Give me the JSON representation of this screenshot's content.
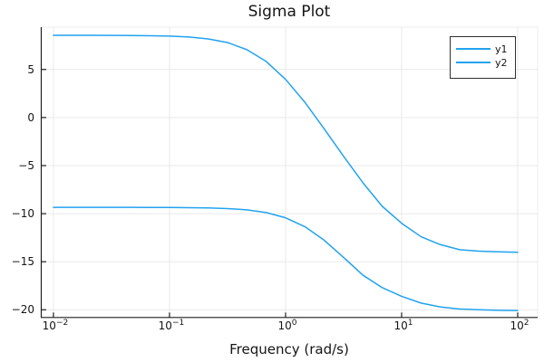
{
  "title": "Sigma Plot",
  "xlabel": "Frequency (rad/s)",
  "style": {
    "series_color": "#22a2ef",
    "grid_color": "#e9e9e9",
    "frame_color": "#ededed",
    "spine_color": "#1f1f1f",
    "text_color": "#151515",
    "legend_border_color": "#2f2f2f",
    "background": "#ffffff"
  },
  "chart_data": {
    "type": "line",
    "title": "Sigma Plot",
    "xlabel": "Frequency (rad/s)",
    "ylabel": "",
    "xscale": "log10",
    "xlim_log10": [
      -2.109,
      2.172
    ],
    "ylim": [
      -20.8,
      9.4
    ],
    "x_tick_exponents": [
      -2,
      -1,
      0,
      1,
      2
    ],
    "y_ticks": [
      5,
      0,
      -5,
      -10,
      -15,
      -20
    ],
    "grid": true,
    "legend_position": "top-right",
    "x": [
      0.01,
      0.0147,
      0.0215,
      0.0316,
      0.0464,
      0.0681,
      0.1,
      0.147,
      0.215,
      0.316,
      0.464,
      0.681,
      1.0,
      1.47,
      2.15,
      3.16,
      4.64,
      6.81,
      10.0,
      14.7,
      21.5,
      31.6,
      46.4,
      68.1,
      100.0
    ],
    "series": [
      {
        "name": "y1",
        "color": "#22a2ef",
        "values_db": [
          8.55,
          8.55,
          8.55,
          8.54,
          8.53,
          8.51,
          8.47,
          8.38,
          8.18,
          7.8,
          7.06,
          5.83,
          3.97,
          1.57,
          -1.17,
          -4.03,
          -6.79,
          -9.24,
          -11.0,
          -12.4,
          -13.22,
          -13.75,
          -13.9,
          -13.97,
          -14.02
        ],
        "start_db": 8.55,
        "end_db": -14.02
      },
      {
        "name": "y2",
        "color": "#22a2ef",
        "values_db": [
          -9.35,
          -9.35,
          -9.35,
          -9.35,
          -9.35,
          -9.36,
          -9.36,
          -9.38,
          -9.41,
          -9.47,
          -9.61,
          -9.89,
          -10.43,
          -11.36,
          -12.76,
          -14.55,
          -16.4,
          -17.7,
          -18.6,
          -19.3,
          -19.7,
          -19.92,
          -20.0,
          -20.05,
          -20.08
        ],
        "start_db": -9.35,
        "end_db": -20.08
      }
    ]
  }
}
